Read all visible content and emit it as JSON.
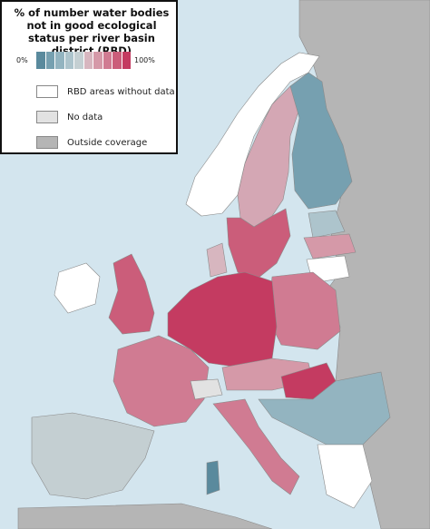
{
  "legend": {
    "title": "% of number water bodies not in good ecological status per river basin district (RBD)",
    "scale_min": "0%",
    "scale_max": "100%",
    "scale_colors": [
      "#5a8a9d",
      "#76a0b0",
      "#93b4c0",
      "#adc4cc",
      "#c4cfd2",
      "#d7b6bf",
      "#d599a8",
      "#d07b92",
      "#cb5d7a",
      "#c43b61"
    ],
    "items": [
      {
        "label": "RBD areas without data",
        "color": "#ffffff"
      },
      {
        "label": "No data",
        "color": "#e2e2e2"
      },
      {
        "label": "Outside coverage",
        "color": "#b5b5b5"
      }
    ]
  }
}
